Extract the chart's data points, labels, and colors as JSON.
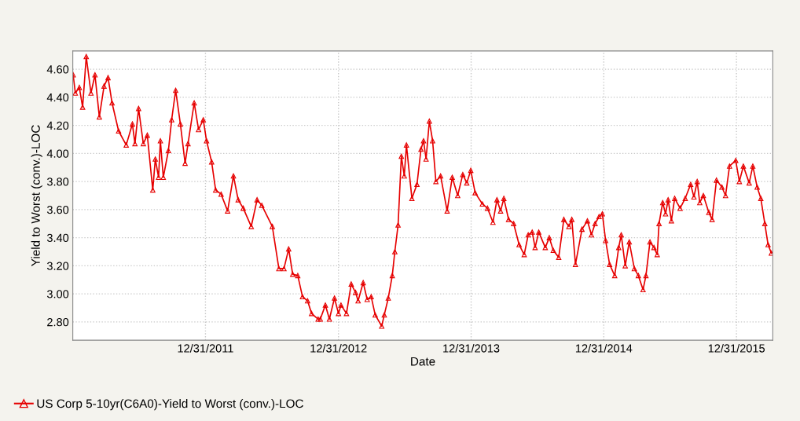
{
  "chart_data": {
    "type": "line",
    "xlabel": "Date",
    "ylabel": "Yield to Worst (conv.)-LOC",
    "xlim": [
      "2010-12-31",
      "2016-04-09"
    ],
    "ylim": [
      2.67,
      4.73
    ],
    "xticks": [
      {
        "value": "2011-12-31",
        "label": "12/31/2011"
      },
      {
        "value": "2012-12-31",
        "label": "12/31/2012"
      },
      {
        "value": "2013-12-31",
        "label": "12/31/2013"
      },
      {
        "value": "2014-12-31",
        "label": "12/31/2014"
      },
      {
        "value": "2015-12-31",
        "label": "12/31/2015"
      }
    ],
    "yticks": [
      {
        "value": 2.8,
        "label": "2.80"
      },
      {
        "value": 3.0,
        "label": "3.00"
      },
      {
        "value": 3.2,
        "label": "3.20"
      },
      {
        "value": 3.4,
        "label": "3.40"
      },
      {
        "value": 3.6,
        "label": "3.60"
      },
      {
        "value": 3.8,
        "label": "3.80"
      },
      {
        "value": 4.0,
        "label": "4.00"
      },
      {
        "value": 4.2,
        "label": "4.20"
      },
      {
        "value": 4.4,
        "label": "4.40"
      },
      {
        "value": 4.6,
        "label": "4.60"
      }
    ],
    "grid": true,
    "legend": "bottom left",
    "marker": "triangle",
    "line_style": "solid",
    "x": [
      "2011-01-01",
      "2011-01-07",
      "2011-01-18",
      "2011-01-27",
      "2011-02-06",
      "2011-02-19",
      "2011-03-02",
      "2011-03-14",
      "2011-03-27",
      "2011-04-07",
      "2011-04-18",
      "2011-05-06",
      "2011-05-27",
      "2011-06-13",
      "2011-06-20",
      "2011-06-30",
      "2011-07-13",
      "2011-07-24",
      "2011-08-08",
      "2011-08-15",
      "2011-08-24",
      "2011-08-29",
      "2011-09-06",
      "2011-09-20",
      "2011-09-29",
      "2011-10-10",
      "2011-10-23",
      "2011-11-05",
      "2011-11-13",
      "2011-11-30",
      "2011-12-12",
      "2011-12-25",
      "2012-01-03",
      "2012-01-17",
      "2012-01-28",
      "2012-02-12",
      "2012-03-01",
      "2012-03-17",
      "2012-03-30",
      "2012-04-13",
      "2012-05-05",
      "2012-05-21",
      "2012-06-03",
      "2012-07-02",
      "2012-07-20",
      "2012-08-03",
      "2012-08-16",
      "2012-08-27",
      "2012-09-10",
      "2012-09-23",
      "2012-10-07",
      "2012-10-18",
      "2012-11-05",
      "2012-11-11",
      "2012-11-25",
      "2012-12-06",
      "2012-12-20",
      "2012-12-31",
      "2013-01-07",
      "2013-01-22",
      "2013-02-04",
      "2013-02-16",
      "2013-02-23",
      "2013-03-09",
      "2013-03-20",
      "2013-03-31",
      "2013-04-11",
      "2013-04-29",
      "2013-05-06",
      "2013-05-17",
      "2013-05-28",
      "2013-06-04",
      "2013-06-13",
      "2013-06-22",
      "2013-06-30",
      "2013-07-06",
      "2013-07-21",
      "2013-08-04",
      "2013-08-15",
      "2013-08-22",
      "2013-08-29",
      "2013-09-07",
      "2013-09-16",
      "2013-09-25",
      "2013-10-08",
      "2013-10-26",
      "2013-11-09",
      "2013-11-24",
      "2013-12-08",
      "2013-12-19",
      "2013-12-30",
      "2014-01-11",
      "2014-01-31",
      "2014-02-14",
      "2014-03-01",
      "2014-03-12",
      "2014-03-22",
      "2014-03-31",
      "2014-04-13",
      "2014-04-27",
      "2014-05-12",
      "2014-05-26",
      "2014-06-06",
      "2014-06-17",
      "2014-06-25",
      "2014-07-05",
      "2014-07-23",
      "2014-08-03",
      "2014-08-14",
      "2014-08-29",
      "2014-09-12",
      "2014-09-26",
      "2014-10-04",
      "2014-10-14",
      "2014-11-01",
      "2014-11-16",
      "2014-11-27",
      "2014-12-07",
      "2014-12-18",
      "2014-12-27",
      "2015-01-05",
      "2015-01-16",
      "2015-01-30",
      "2015-02-10",
      "2015-02-17",
      "2015-02-28",
      "2015-03-11",
      "2015-03-25",
      "2015-04-05",
      "2015-04-18",
      "2015-04-26",
      "2015-05-07",
      "2015-05-18",
      "2015-05-27",
      "2015-06-01",
      "2015-06-11",
      "2015-06-19",
      "2015-06-26",
      "2015-07-05",
      "2015-07-14",
      "2015-07-29",
      "2015-08-12",
      "2015-08-27",
      "2015-09-05",
      "2015-09-14",
      "2015-09-21",
      "2015-10-01",
      "2015-10-16",
      "2015-10-25",
      "2015-11-06",
      "2015-11-21",
      "2015-12-01",
      "2015-12-12",
      "2015-12-29",
      "2016-01-08",
      "2016-01-19",
      "2016-02-04",
      "2016-02-14",
      "2016-02-26",
      "2016-03-07",
      "2016-03-18",
      "2016-03-27",
      "2016-04-05"
    ],
    "series": [
      {
        "name": "US Corp 5-10yr(C6A0)-Yield to Worst (conv.)-LOC",
        "color": "#e60000",
        "values": [
          4.56,
          4.43,
          4.47,
          4.33,
          4.69,
          4.43,
          4.56,
          4.26,
          4.48,
          4.54,
          4.36,
          4.16,
          4.06,
          4.21,
          4.07,
          4.32,
          4.07,
          4.13,
          3.74,
          3.96,
          3.83,
          4.09,
          3.83,
          4.02,
          4.24,
          4.45,
          4.21,
          3.93,
          4.07,
          4.36,
          4.17,
          4.24,
          4.09,
          3.94,
          3.74,
          3.71,
          3.59,
          3.84,
          3.67,
          3.61,
          3.48,
          3.67,
          3.63,
          3.48,
          3.18,
          3.18,
          3.32,
          3.14,
          3.13,
          2.98,
          2.95,
          2.86,
          2.82,
          2.82,
          2.92,
          2.82,
          2.97,
          2.86,
          2.92,
          2.86,
          3.07,
          3.01,
          2.95,
          3.08,
          2.96,
          2.98,
          2.85,
          2.77,
          2.85,
          2.97,
          3.13,
          3.3,
          3.49,
          3.98,
          3.84,
          4.06,
          3.68,
          3.78,
          4.03,
          4.09,
          3.96,
          4.23,
          4.09,
          3.8,
          3.84,
          3.59,
          3.83,
          3.7,
          3.85,
          3.79,
          3.88,
          3.72,
          3.64,
          3.61,
          3.51,
          3.67,
          3.59,
          3.68,
          3.53,
          3.5,
          3.35,
          3.28,
          3.42,
          3.44,
          3.33,
          3.44,
          3.33,
          3.4,
          3.31,
          3.26,
          3.53,
          3.48,
          3.53,
          3.21,
          3.46,
          3.52,
          3.42,
          3.5,
          3.55,
          3.57,
          3.38,
          3.21,
          3.13,
          3.33,
          3.42,
          3.2,
          3.37,
          3.18,
          3.13,
          3.03,
          3.13,
          3.37,
          3.33,
          3.28,
          3.5,
          3.65,
          3.57,
          3.67,
          3.52,
          3.68,
          3.61,
          3.68,
          3.78,
          3.69,
          3.8,
          3.65,
          3.7,
          3.58,
          3.53,
          3.81,
          3.76,
          3.7,
          3.91,
          3.95,
          3.8,
          3.91,
          3.79,
          3.91,
          3.76,
          3.68,
          3.5,
          3.35,
          3.29
        ]
      }
    ]
  }
}
